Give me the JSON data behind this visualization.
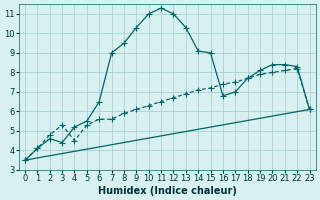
{
  "xlabel": "Humidex (Indice chaleur)",
  "bg_color": "#d8f0f0",
  "grid_color": "#a0c8c8",
  "line_color": "#006666",
  "xlim": [
    -0.5,
    23.5
  ],
  "ylim": [
    3,
    11.5
  ],
  "xticks": [
    0,
    1,
    2,
    3,
    4,
    5,
    6,
    7,
    8,
    9,
    10,
    11,
    12,
    13,
    14,
    15,
    16,
    17,
    18,
    19,
    20,
    21,
    22,
    23
  ],
  "yticks": [
    3,
    4,
    5,
    6,
    7,
    8,
    9,
    10,
    11
  ],
  "line1_x": [
    0,
    1,
    2,
    3,
    4,
    5,
    6,
    7,
    8,
    9,
    10,
    11,
    12,
    13,
    14,
    15,
    16,
    17,
    18,
    19,
    20,
    21,
    22,
    23
  ],
  "line1_y": [
    3.5,
    4.1,
    4.6,
    4.4,
    5.2,
    5.5,
    6.5,
    9.0,
    9.5,
    10.3,
    11.0,
    11.3,
    11.0,
    10.3,
    9.1,
    9.0,
    6.8,
    7.0,
    7.7,
    8.1,
    8.4,
    8.4,
    8.3,
    6.1
  ],
  "line2_x": [
    0,
    1,
    2,
    3,
    4,
    5,
    6,
    7,
    8,
    9,
    10,
    11,
    12,
    13,
    14,
    15,
    16,
    17,
    18,
    19,
    20,
    21,
    22,
    23
  ],
  "line2_y": [
    3.5,
    4.1,
    4.8,
    5.3,
    4.5,
    5.3,
    5.6,
    5.6,
    5.9,
    6.1,
    6.3,
    6.5,
    6.7,
    6.9,
    7.1,
    7.2,
    7.4,
    7.5,
    7.7,
    7.9,
    8.0,
    8.1,
    8.2,
    6.1
  ],
  "line3_x": [
    0,
    23
  ],
  "line3_y": [
    3.5,
    6.1
  ]
}
